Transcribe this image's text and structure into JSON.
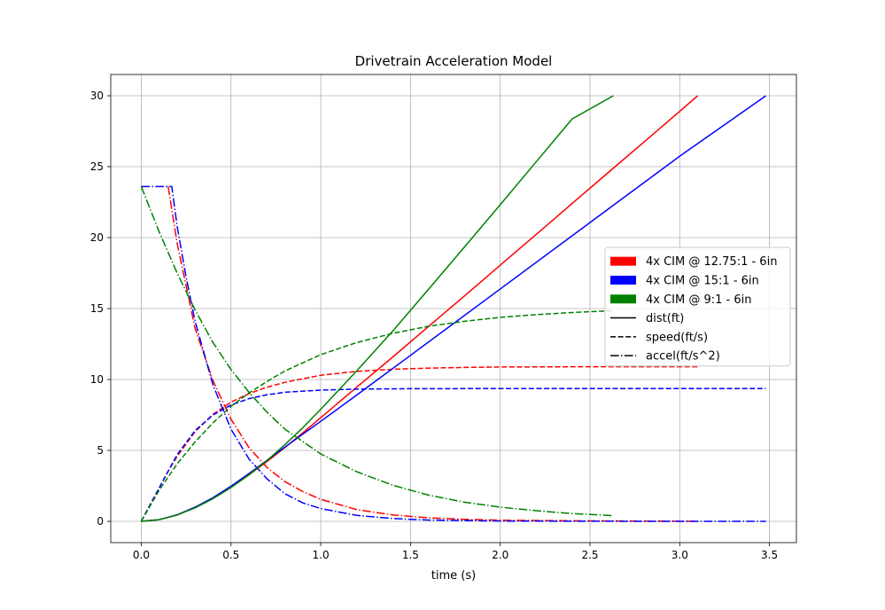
{
  "chart_data": {
    "type": "line",
    "title": "Drivetrain Acceleration Model",
    "xlabel": "time (s)",
    "ylabel": "",
    "xlim": [
      -0.17,
      3.65
    ],
    "ylim": [
      -1.5,
      31.5
    ],
    "xticks": [
      0.0,
      0.5,
      1.0,
      1.5,
      2.0,
      2.5,
      3.0,
      3.5
    ],
    "xtick_labels": [
      "0.0",
      "0.5",
      "1.0",
      "1.5",
      "2.0",
      "2.5",
      "3.0",
      "3.5"
    ],
    "yticks": [
      0,
      5,
      10,
      15,
      20,
      25,
      30
    ],
    "ytick_labels": [
      "0",
      "5",
      "10",
      "15",
      "20",
      "25",
      "30"
    ],
    "grid": true,
    "legend_position": "center-right",
    "legend": {
      "configurations": [
        {
          "label": "4x CIM @ 12.75:1 - 6in",
          "color": "#ff0000"
        },
        {
          "label": "4x CIM @ 15:1 - 6in",
          "color": "#0000ff"
        },
        {
          "label": "4x CIM @ 9:1 - 6in",
          "color": "#008000"
        }
      ],
      "line_styles": [
        {
          "label": "dist(ft)",
          "style": "solid"
        },
        {
          "label": "speed(ft/s)",
          "style": "dashed"
        },
        {
          "label": "accel(ft/s^2)",
          "style": "dashdot"
        }
      ]
    },
    "series": [
      {
        "configuration": "4x CIM @ 12.75:1 - 6in",
        "quantity": "dist(ft)",
        "color": "#ff0000",
        "style": "solid",
        "x": [
          0,
          0.1,
          0.2,
          0.3,
          0.4,
          0.5,
          0.6,
          0.7,
          0.8,
          0.9,
          1.0,
          1.2,
          1.4,
          1.6,
          1.8,
          2.0,
          2.2,
          2.4,
          2.6,
          2.8,
          3.0,
          3.1
        ],
        "y": [
          0,
          0.12,
          0.44,
          0.98,
          1.63,
          2.4,
          3.27,
          4.21,
          5.2,
          6.24,
          7.31,
          9.45,
          11.57,
          13.73,
          15.88,
          18.06,
          20.22,
          22.4,
          24.57,
          26.73,
          28.9,
          30.0
        ]
      },
      {
        "configuration": "4x CIM @ 12.75:1 - 6in",
        "quantity": "speed(ft/s)",
        "color": "#ff0000",
        "style": "dashed",
        "x": [
          0,
          0.1,
          0.15,
          0.2,
          0.3,
          0.4,
          0.5,
          0.6,
          0.7,
          0.8,
          1.0,
          1.2,
          1.4,
          1.6,
          1.8,
          2.0,
          2.5,
          3.0,
          3.1
        ],
        "y": [
          0,
          2.36,
          3.54,
          4.58,
          6.32,
          7.55,
          8.4,
          9.0,
          9.45,
          9.8,
          10.3,
          10.57,
          10.72,
          10.8,
          10.85,
          10.88,
          10.9,
          10.9,
          10.9
        ]
      },
      {
        "configuration": "4x CIM @ 12.75:1 - 6in",
        "quantity": "accel(ft/s^2)",
        "color": "#ff0000",
        "style": "dashdot",
        "x": [
          0.15,
          0.2,
          0.3,
          0.4,
          0.5,
          0.6,
          0.7,
          0.8,
          0.9,
          1.0,
          1.2,
          1.4,
          1.6,
          1.8,
          2.0,
          2.5,
          3.0,
          3.1
        ],
        "y": [
          23.6,
          19.6,
          13.6,
          9.9,
          7.2,
          5.2,
          3.8,
          2.8,
          2.1,
          1.55,
          0.83,
          0.45,
          0.25,
          0.14,
          0.08,
          0.03,
          0.01,
          0.01
        ]
      },
      {
        "configuration": "4x CIM @ 15:1 - 6in",
        "quantity": "dist(ft)",
        "color": "#0000ff",
        "style": "solid",
        "x": [
          0,
          0.1,
          0.2,
          0.3,
          0.4,
          0.5,
          0.6,
          0.7,
          0.8,
          0.9,
          1.0,
          1.2,
          1.5,
          2.0,
          2.5,
          3.0,
          3.48
        ],
        "y": [
          0,
          0.12,
          0.46,
          1.0,
          1.67,
          2.48,
          3.37,
          4.3,
          5.23,
          6.15,
          7.05,
          8.9,
          11.7,
          16.38,
          21.06,
          25.74,
          30.0
        ]
      },
      {
        "configuration": "4x CIM @ 15:1 - 6in",
        "quantity": "speed(ft/s)",
        "color": "#0000ff",
        "style": "dashed",
        "x": [
          0,
          0.1,
          0.17,
          0.2,
          0.3,
          0.4,
          0.5,
          0.6,
          0.7,
          0.8,
          1.0,
          1.2,
          1.5,
          2.0,
          2.5,
          3.0,
          3.48
        ],
        "y": [
          0,
          2.36,
          4.0,
          4.7,
          6.4,
          7.5,
          8.2,
          8.65,
          8.92,
          9.1,
          9.25,
          9.32,
          9.35,
          9.36,
          9.36,
          9.36,
          9.36
        ]
      },
      {
        "configuration": "4x CIM @ 15:1 - 6in",
        "quantity": "accel(ft/s^2)",
        "color": "#0000ff",
        "style": "dashdot",
        "x": [
          0,
          0.17,
          0.2,
          0.25,
          0.3,
          0.4,
          0.5,
          0.6,
          0.7,
          0.8,
          0.9,
          1.0,
          1.2,
          1.4,
          1.6,
          2.0,
          2.5,
          3.0,
          3.48
        ],
        "y": [
          23.6,
          23.6,
          20.8,
          17.2,
          14.1,
          9.6,
          6.5,
          4.4,
          3.0,
          1.95,
          1.3,
          0.9,
          0.42,
          0.2,
          0.09,
          0.02,
          0.005,
          0.001,
          0.0
        ]
      },
      {
        "configuration": "4x CIM @ 9:1 - 6in",
        "quantity": "dist(ft)",
        "color": "#008000",
        "style": "solid",
        "x": [
          0,
          0.1,
          0.2,
          0.3,
          0.4,
          0.5,
          0.6,
          0.7,
          0.8,
          0.9,
          1.0,
          1.2,
          1.4,
          1.6,
          1.8,
          2.0,
          2.2,
          2.4,
          2.63
        ],
        "y": [
          0,
          0.12,
          0.45,
          0.95,
          1.6,
          2.38,
          3.28,
          4.28,
          5.4,
          6.6,
          7.9,
          10.6,
          13.4,
          16.35,
          19.33,
          22.32,
          25.34,
          28.36,
          30.0
        ]
      },
      {
        "configuration": "4x CIM @ 9:1 - 6in",
        "quantity": "speed(ft/s)",
        "color": "#008000",
        "style": "dashed",
        "x": [
          0,
          0.1,
          0.2,
          0.3,
          0.4,
          0.5,
          0.6,
          0.7,
          0.8,
          1.0,
          1.2,
          1.4,
          1.6,
          1.8,
          2.0,
          2.2,
          2.4,
          2.63
        ],
        "y": [
          0,
          2.2,
          4.05,
          5.6,
          6.95,
          8.1,
          9.05,
          9.85,
          10.6,
          11.75,
          12.6,
          13.25,
          13.75,
          14.1,
          14.38,
          14.57,
          14.72,
          14.85
        ]
      },
      {
        "configuration": "4x CIM @ 9:1 - 6in",
        "quantity": "accel(ft/s^2)",
        "color": "#008000",
        "style": "dashdot",
        "x": [
          0,
          0.1,
          0.2,
          0.3,
          0.4,
          0.5,
          0.6,
          0.7,
          0.8,
          1.0,
          1.2,
          1.4,
          1.6,
          1.8,
          2.0,
          2.2,
          2.4,
          2.63
        ],
        "y": [
          23.6,
          20.4,
          17.5,
          14.9,
          12.6,
          10.7,
          9.1,
          7.7,
          6.5,
          4.75,
          3.5,
          2.55,
          1.85,
          1.35,
          1.0,
          0.75,
          0.55,
          0.4
        ]
      }
    ]
  }
}
